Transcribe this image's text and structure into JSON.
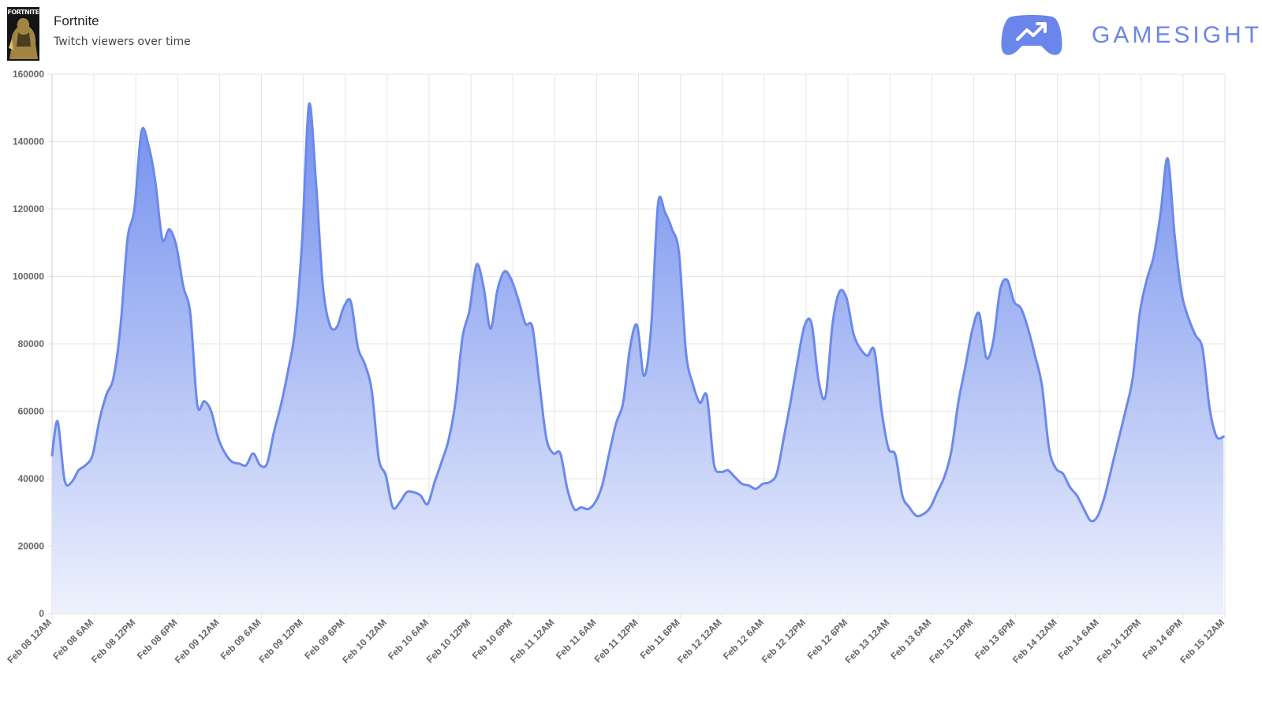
{
  "header": {
    "game_title": "Fortnite",
    "subtitle": "Twitch viewers over time",
    "thumbnail_label": "FORTNITE",
    "brand_name": "GAMESIGHT",
    "brand_icon": "gamepad-trend-icon"
  },
  "colors": {
    "line": "#6b89ec",
    "fill_top": "#6b89ec",
    "fill_bottom": "#eef1fd",
    "grid": "#e6e6e6",
    "brand": "#6a86ea"
  },
  "chart_data": {
    "type": "area",
    "title": "",
    "xlabel": "",
    "ylabel": "",
    "ylim": [
      0,
      160000
    ],
    "yticks": [
      0,
      20000,
      40000,
      60000,
      80000,
      100000,
      120000,
      140000,
      160000
    ],
    "x_range_hours": [
      0,
      168
    ],
    "tick_labels": [
      "Feb 08 12AM",
      "Feb 08 6AM",
      "Feb 08 12PM",
      "Feb 08 6PM",
      "Feb 09 12AM",
      "Feb 09 6AM",
      "Feb 09 12PM",
      "Feb 09 6PM",
      "Feb 10 12AM",
      "Feb 10 6AM",
      "Feb 10 12PM",
      "Feb 10 6PM",
      "Feb 11 12AM",
      "Feb 11 6AM",
      "Feb 11 12PM",
      "Feb 11 6PM",
      "Feb 12 12AM",
      "Feb 12 6AM",
      "Feb 12 12PM",
      "Feb 12 6PM",
      "Feb 13 12AM",
      "Feb 13 6AM",
      "Feb 13 12PM",
      "Feb 13 6PM",
      "Feb 14 12AM",
      "Feb 14 6AM",
      "Feb 14 12PM",
      "Feb 14 6PM",
      "Feb 15 12AM"
    ],
    "grid": true,
    "legend": "none",
    "series": [
      {
        "x": [
          0,
          0.8,
          1.8,
          2.8,
          3.8,
          4.8,
          5.8,
          6.8,
          7.8,
          8.8,
          9.8,
          10.8,
          11.8,
          12.8,
          13.8,
          14.8,
          15.8,
          16.8,
          17.8,
          18.8,
          19.8,
          20.8,
          21.8,
          22.8,
          23.8,
          24.8,
          25.8,
          26.8,
          27.8,
          28.8,
          29.8,
          30.8,
          31.8,
          32.8,
          33.8,
          34.8,
          35.8,
          36.8,
          37.8,
          38.8,
          39.8,
          40.8,
          41.8,
          42.8,
          43.8,
          44.8,
          45.8,
          46.8,
          47.8,
          48.8,
          49.8,
          50.8,
          51.8,
          52.8,
          53.8,
          54.8,
          55.8,
          56.8,
          57.8,
          58.8,
          59.8,
          60.8,
          61.8,
          62.8,
          63.8,
          64.8,
          65.8,
          66.8,
          67.8,
          68.8,
          69.8,
          70.8,
          71.8,
          72.8,
          73.8,
          74.8,
          75.8,
          76.8,
          77.8,
          78.8,
          79.8,
          80.8,
          81.8,
          82.8,
          83.8,
          84.8,
          85.8,
          86.8,
          87.8,
          88.8,
          89.8,
          90.8,
          91.8,
          92.8,
          93.8,
          94.8,
          95.8,
          96.8,
          97.8,
          98.8,
          99.8,
          100.8,
          101.8,
          102.8,
          103.8,
          104.8,
          105.8,
          106.8,
          107.8,
          108.8,
          109.8,
          110.8,
          111.8,
          112.8,
          113.8,
          114.8,
          115.8,
          116.8,
          117.8,
          118.8,
          119.8,
          120.8,
          121.8,
          122.8,
          123.8,
          124.8,
          125.8,
          126.8,
          127.8,
          128.8,
          129.8,
          130.8,
          131.8,
          132.8,
          133.8,
          134.8,
          135.8,
          136.8,
          137.8,
          138.8,
          139.8,
          140.8,
          141.8,
          142.8,
          143.8,
          144.8,
          145.8,
          146.8,
          147.8,
          148.8,
          149.8,
          150.8,
          151.8,
          152.8,
          153.8,
          154.8,
          155.8,
          156.8,
          157.8,
          158.8,
          159.8,
          160.8,
          161.8,
          162.8,
          163.8,
          164.8,
          165.8,
          166.8,
          167.8
        ],
        "values": [
          47000,
          57000,
          39500,
          39000,
          42500,
          44000,
          47000,
          57500,
          65000,
          70000,
          85000,
          111000,
          120000,
          143000,
          139000,
          128000,
          111000,
          114000,
          109000,
          97000,
          89000,
          62000,
          63000,
          60000,
          52000,
          47500,
          45000,
          44500,
          44000,
          47500,
          44000,
          44500,
          54000,
          62000,
          72000,
          84000,
          110000,
          151000,
          128000,
          97000,
          85500,
          85000,
          91000,
          92500,
          79000,
          74000,
          66000,
          46000,
          41000,
          31500,
          33000,
          36000,
          36000,
          35000,
          32500,
          39000,
          45000,
          51500,
          63000,
          82000,
          90000,
          103500,
          97000,
          84500,
          96000,
          101500,
          99000,
          93000,
          86000,
          85000,
          68500,
          52000,
          47500,
          47500,
          37000,
          31000,
          31500,
          31000,
          33000,
          38000,
          47500,
          56500,
          62500,
          79000,
          85500,
          70500,
          84500,
          121500,
          119000,
          114000,
          107000,
          77500,
          68000,
          62500,
          64500,
          44500,
          42000,
          42500,
          40500,
          38500,
          38000,
          37000,
          38500,
          39000,
          41500,
          52000,
          63000,
          75000,
          85500,
          86000,
          69000,
          64500,
          86000,
          95500,
          93500,
          83000,
          78500,
          76500,
          78000,
          60500,
          49000,
          47000,
          35000,
          31500,
          29000,
          29500,
          31500,
          36000,
          40500,
          48000,
          62500,
          73000,
          84000,
          89000,
          76000,
          80500,
          96000,
          99000,
          92500,
          90500,
          84500,
          76500,
          67500,
          49000,
          43000,
          41500,
          37500,
          35000,
          31000,
          27500,
          29000,
          35000,
          43500,
          52000,
          60500,
          70000,
          89000,
          99000,
          106000,
          119000,
          135000,
          112000,
          95000,
          87500,
          82500,
          78500,
          61000,
          52500,
          52500
        ]
      }
    ]
  }
}
